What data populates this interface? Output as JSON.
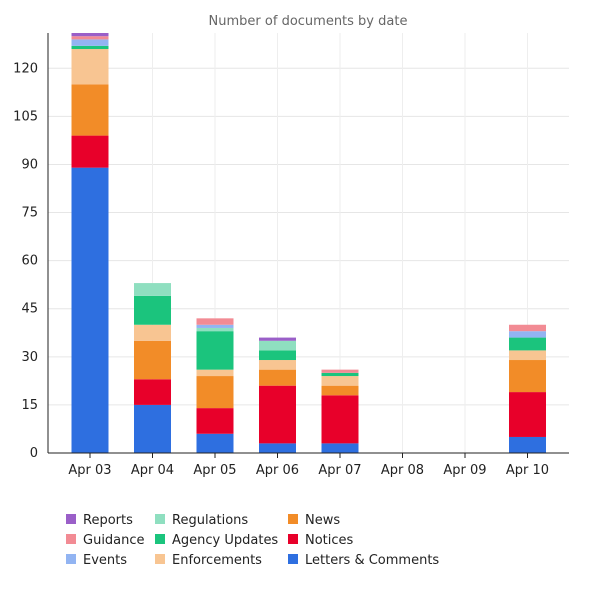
{
  "chart_data": {
    "type": "bar",
    "stacked": true,
    "title": "Number of documents by date",
    "categories": [
      "Apr 03",
      "Apr 04",
      "Apr 05",
      "Apr 06",
      "Apr 07",
      "Apr 08",
      "Apr 09",
      "Apr 10"
    ],
    "ylim": [
      0,
      131
    ],
    "yticks": [
      0,
      15,
      30,
      45,
      60,
      75,
      90,
      105,
      120
    ],
    "grid": true,
    "legend_position": "bottom",
    "series": [
      {
        "name": "Letters & Comments",
        "color": "#2e6fe0",
        "values": [
          89,
          15,
          6,
          3,
          3,
          0,
          0,
          5
        ]
      },
      {
        "name": "Notices",
        "color": "#e8002a",
        "values": [
          10,
          8,
          8,
          18,
          15,
          0,
          0,
          14
        ]
      },
      {
        "name": "News",
        "color": "#f28c28",
        "values": [
          16,
          12,
          10,
          5,
          3,
          0,
          0,
          10
        ]
      },
      {
        "name": "Enforcements",
        "color": "#f8c592",
        "values": [
          11,
          5,
          2,
          3,
          3,
          0,
          0,
          3
        ]
      },
      {
        "name": "Agency Updates",
        "color": "#1bc47d",
        "values": [
          1,
          9,
          12,
          3,
          1,
          0,
          0,
          4
        ]
      },
      {
        "name": "Regulations",
        "color": "#8fdfc0",
        "values": [
          0,
          4,
          1,
          3,
          0,
          0,
          0,
          0
        ]
      },
      {
        "name": "Events",
        "color": "#92b4f2",
        "values": [
          2,
          0,
          1,
          0,
          0,
          0,
          0,
          2
        ]
      },
      {
        "name": "Guidance",
        "color": "#f28b94",
        "values": [
          1,
          0,
          2,
          0,
          1,
          0,
          0,
          2
        ]
      },
      {
        "name": "Reports",
        "color": "#9a5fc8",
        "values": [
          1,
          0,
          0,
          1,
          0,
          0,
          0,
          0
        ]
      }
    ],
    "legend_order": [
      "Reports",
      "Guidance",
      "Events",
      "Regulations",
      "Agency Updates",
      "Enforcements",
      "News",
      "Notices",
      "Letters & Comments"
    ]
  }
}
